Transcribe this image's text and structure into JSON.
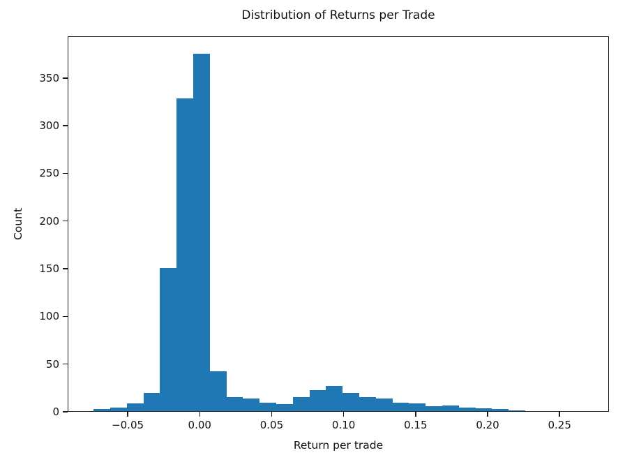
{
  "figure": {
    "title": "Distribution of Returns per Trade"
  },
  "chart_data": {
    "type": "bar",
    "subtype": "histogram",
    "title": "Distribution of Returns per Trade",
    "xlabel": "Return per trade",
    "ylabel": "Count",
    "bar_color": "#1f77b4",
    "background_color": "#ffffff",
    "axis_color": "#1a1a1a",
    "grid": false,
    "legend_position": "none",
    "bin_start": -0.0742,
    "bin_width": 0.011535,
    "counts": [
      2,
      4,
      8,
      19,
      150,
      328,
      375,
      42,
      15,
      13,
      9,
      7,
      15,
      22,
      26,
      19,
      15,
      13,
      9,
      8,
      5,
      6,
      4,
      3,
      2,
      1
    ],
    "xlim": [
      -0.0917,
      0.2843
    ],
    "ylim": [
      0,
      393.75
    ],
    "xtick_values": [
      -0.05,
      0.0,
      0.05,
      0.1,
      0.15,
      0.2,
      0.25
    ],
    "xtick_labels": [
      "−0.05",
      "0.00",
      "0.05",
      "0.10",
      "0.15",
      "0.20",
      "0.25"
    ],
    "ytick_values": [
      0,
      50,
      100,
      150,
      200,
      250,
      300,
      350
    ],
    "ytick_labels": [
      "0",
      "50",
      "100",
      "150",
      "200",
      "250",
      "300",
      "350"
    ]
  }
}
